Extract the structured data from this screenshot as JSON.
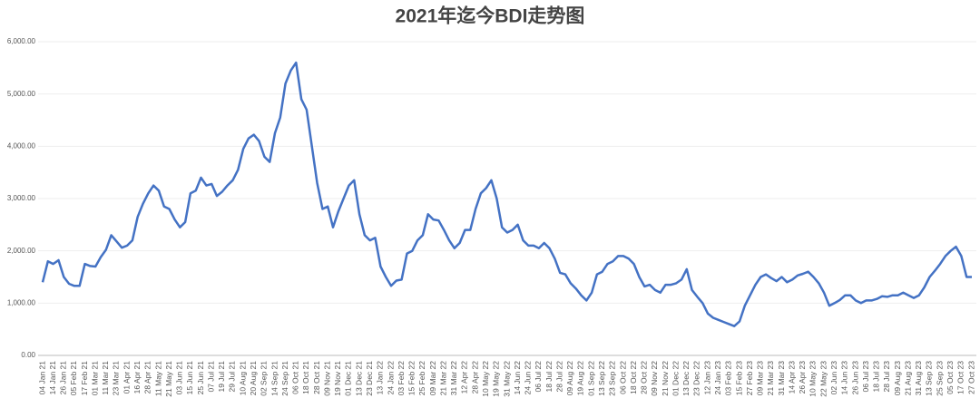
{
  "chart_data": {
    "type": "line",
    "title": "2021年迄今BDI走势图",
    "categories": [
      "04 Jan 21",
      null,
      "14 Jan 21",
      null,
      "26 Jan 21",
      null,
      "05 Feb 21",
      null,
      "17 Feb 21",
      null,
      "01 Mar 21",
      null,
      "11 Mar 21",
      null,
      "23 Mar 21",
      null,
      "01 Apr 21",
      null,
      "16 Apr 21",
      null,
      "28 Apr 21",
      null,
      "11 May 21",
      null,
      "21 May 21",
      null,
      "03 Jun 21",
      null,
      "15 Jun 21",
      null,
      "25 Jun 21",
      null,
      "07 Jul 21",
      null,
      "19 Jul 21",
      null,
      "29 Jul 21",
      null,
      "10 Aug 21",
      null,
      "20 Aug 21",
      null,
      "02 Sep 21",
      null,
      "14 Sep 21",
      null,
      "24 Sep 21",
      null,
      "06 Oct 21",
      null,
      "18 Oct 21",
      null,
      "28 Oct 21",
      null,
      "09 Nov 21",
      null,
      "19 Nov 21",
      null,
      "01 Dec 21",
      null,
      "13 Dec 21",
      null,
      "23 Dec 21",
      null,
      "13 Jan 22",
      null,
      "24 Jan 22",
      null,
      "03 Feb 22",
      null,
      "15 Feb 22",
      null,
      "25 Feb 22",
      null,
      "09 Mar 22",
      null,
      "21 Mar 22",
      null,
      "31 Mar 22",
      null,
      "12 Apr 22",
      null,
      "28 Apr 22",
      null,
      "10 May 22",
      null,
      "19 May 22",
      null,
      "31 May 22",
      null,
      "14 Jun 22",
      null,
      "24 Jun 22",
      null,
      "06 Jul 22",
      null,
      "18 Jul 22",
      null,
      "28 Jul 22",
      null,
      "09 Aug 22",
      null,
      "19 Aug 22",
      null,
      "01 Sep 22",
      null,
      "13 Sep 22",
      null,
      "23 Sep 22",
      null,
      "06 Oct 22",
      null,
      "18 Oct 22",
      null,
      "28 Oct 22",
      null,
      "09 Nov 22",
      null,
      "21 Nov 22",
      null,
      "01 Dec 22",
      null,
      "13 Dec 22",
      null,
      "23 Dec 22",
      null,
      "12 Jan 23",
      null,
      "24 Jan 23",
      null,
      "03 Feb 23",
      null,
      "15 Feb 23",
      null,
      "27 Feb 23",
      null,
      "09 Mar 23",
      null,
      "21 Mar 23",
      null,
      "31 Mar 23",
      null,
      "14 Apr 23",
      null,
      "26 Apr 23",
      null,
      "10 May 23",
      null,
      "22 May 23",
      null,
      "02 Jun 23",
      null,
      "14 Jun 23",
      null,
      "26 Jun 23",
      null,
      "06 Jul 23",
      null,
      "18 Jul 23",
      null,
      "28 Jul 23",
      null,
      "09 Aug 23",
      null,
      "21 Aug 23",
      null,
      "31 Aug 23",
      null,
      "13 Sep 23",
      null,
      "25 Sep 23",
      null,
      "05 Oct 23",
      null,
      "17 Oct 23",
      null,
      "27 Oct 23"
    ],
    "values": [
      1400,
      1800,
      1750,
      1820,
      1500,
      1370,
      1330,
      1330,
      1750,
      1710,
      1700,
      1880,
      2020,
      2300,
      2180,
      2060,
      2100,
      2200,
      2650,
      2900,
      3100,
      3250,
      3150,
      2850,
      2800,
      2600,
      2450,
      2550,
      3100,
      3150,
      3400,
      3250,
      3280,
      3050,
      3130,
      3250,
      3350,
      3550,
      3950,
      4150,
      4220,
      4100,
      3800,
      3700,
      4250,
      4550,
      5200,
      5450,
      5600,
      4900,
      4700,
      4000,
      3300,
      2800,
      2850,
      2450,
      2750,
      3000,
      3250,
      3350,
      2700,
      2300,
      2200,
      2250,
      1700,
      1500,
      1330,
      1430,
      1450,
      1950,
      2000,
      2200,
      2300,
      2700,
      2600,
      2580,
      2400,
      2200,
      2050,
      2150,
      2400,
      2400,
      2800,
      3100,
      3200,
      3350,
      3000,
      2450,
      2350,
      2400,
      2500,
      2200,
      2100,
      2100,
      2050,
      2150,
      2050,
      1850,
      1580,
      1550,
      1380,
      1280,
      1150,
      1050,
      1200,
      1550,
      1600,
      1750,
      1800,
      1900,
      1900,
      1850,
      1750,
      1500,
      1320,
      1350,
      1250,
      1200,
      1350,
      1350,
      1380,
      1450,
      1650,
      1250,
      1120,
      1000,
      800,
      720,
      680,
      640,
      600,
      560,
      650,
      950,
      1150,
      1350,
      1500,
      1550,
      1480,
      1420,
      1500,
      1400,
      1450,
      1530,
      1560,
      1600,
      1500,
      1380,
      1200,
      950,
      1000,
      1060,
      1150,
      1150,
      1050,
      1000,
      1050,
      1050,
      1080,
      1130,
      1120,
      1150,
      1150,
      1200,
      1150,
      1100,
      1150,
      1300,
      1500,
      1620,
      1750,
      1900,
      2000,
      2080,
      1900,
      1500,
      1500
    ],
    "color": "#4472c4",
    "ylim": [
      0,
      6000
    ],
    "yticks": [
      {
        "value": 0,
        "label": "0.00"
      },
      {
        "value": 1000,
        "label": "1,000.00"
      },
      {
        "value": 2000,
        "label": "2,000.00"
      },
      {
        "value": 3000,
        "label": "3,000.00"
      },
      {
        "value": 4000,
        "label": "4,000.00"
      },
      {
        "value": 5000,
        "label": "5,000.00"
      },
      {
        "value": 6000,
        "label": "6,000.00"
      }
    ],
    "grid": true
  }
}
